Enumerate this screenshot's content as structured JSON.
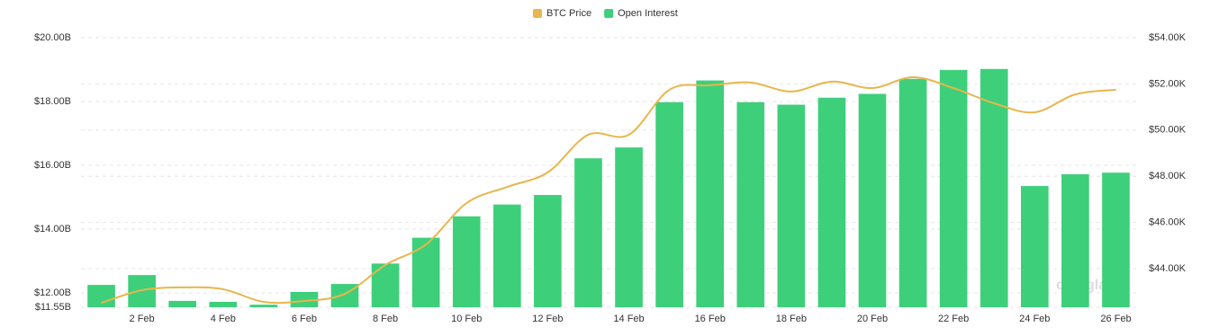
{
  "chart_data": {
    "type": "bar_line",
    "watermark": "coinglass",
    "categories": [
      null,
      "2 Feb",
      null,
      "4 Feb",
      null,
      "6 Feb",
      null,
      "8 Feb",
      null,
      "10 Feb",
      null,
      "12 Feb",
      null,
      "14 Feb",
      null,
      "16 Feb",
      null,
      "18 Feb",
      null,
      "20 Feb",
      null,
      "22 Feb",
      null,
      "24 Feb",
      null,
      "26 Feb"
    ],
    "series": [
      {
        "name": "BTC Price",
        "color": "#e8b64c",
        "type": "line",
        "axis": "y2",
        "values": [
          42.52,
          43.07,
          43.19,
          43.11,
          42.56,
          42.6,
          42.91,
          44.16,
          45.05,
          46.84,
          47.54,
          48.17,
          49.8,
          49.8,
          51.75,
          51.94,
          52.06,
          51.67,
          52.1,
          51.82,
          52.29,
          51.82,
          51.16,
          50.77,
          51.55,
          51.75
        ]
      },
      {
        "name": "Open Interest",
        "color": "#3ecf7b",
        "type": "bar",
        "values": [
          12.25,
          12.56,
          11.75,
          11.72,
          11.63,
          12.03,
          12.28,
          12.92,
          13.73,
          14.4,
          14.77,
          15.07,
          16.22,
          16.56,
          17.98,
          18.66,
          17.98,
          17.9,
          18.12,
          18.24,
          18.71,
          18.99,
          19.02,
          15.35,
          15.72,
          15.77
        ]
      }
    ],
    "ylim": [
      11.55,
      20
    ],
    "yticks": [
      {
        "value": 11.55,
        "label": "$11.55B"
      },
      {
        "value": 12,
        "label": "$12.00B"
      },
      {
        "value": 14,
        "label": "$14.00B"
      },
      {
        "value": 16,
        "label": "$16.00B"
      },
      {
        "value": 18,
        "label": "$18.00B"
      },
      {
        "value": 20,
        "label": "$20.00B"
      }
    ],
    "y2lim": [
      42.33,
      54
    ],
    "y2ticks": [
      {
        "value": 44,
        "label": "$44.00K"
      },
      {
        "value": 46,
        "label": "$46.00K"
      },
      {
        "value": 48,
        "label": "$48.00K"
      },
      {
        "value": 50,
        "label": "$50.00K"
      },
      {
        "value": 52,
        "label": "$52.00K"
      },
      {
        "value": 54,
        "label": "$54.00K"
      }
    ],
    "grid": true,
    "legend": "top"
  }
}
